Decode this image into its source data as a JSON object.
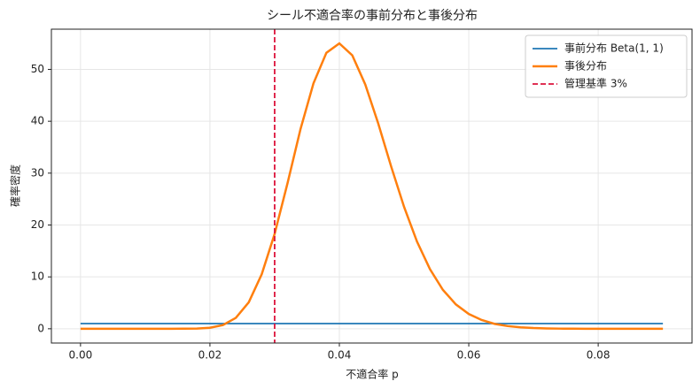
{
  "chart_data": {
    "type": "line",
    "title": "シール不適合率の事前分布と事後分布",
    "x_label": "不適合率 p",
    "y_label": "確率密度",
    "x": [
      0,
      0.002,
      0.004,
      0.006,
      0.008,
      0.01,
      0.012,
      0.014,
      0.016,
      0.018,
      0.02,
      0.022,
      0.024,
      0.026,
      0.028,
      0.03,
      0.032,
      0.034,
      0.036,
      0.038,
      0.04,
      0.042,
      0.044,
      0.046,
      0.048,
      0.05,
      0.052,
      0.054,
      0.056,
      0.058,
      0.06,
      0.062,
      0.064,
      0.066,
      0.068,
      0.07,
      0.072,
      0.074,
      0.076,
      0.078,
      0.08,
      0.082,
      0.084,
      0.086,
      0.088,
      0.09
    ],
    "series": [
      {
        "name": "事前分布 Beta(1, 1)",
        "color": "#1f77b4",
        "width": 1.8,
        "values": [
          1,
          1,
          1,
          1,
          1,
          1,
          1,
          1,
          1,
          1,
          1,
          1,
          1,
          1,
          1,
          1,
          1,
          1,
          1,
          1,
          1,
          1,
          1,
          1,
          1,
          1,
          1,
          1,
          1,
          1,
          1,
          1,
          1,
          1,
          1,
          1,
          1,
          1,
          1,
          1,
          1,
          1,
          1,
          1,
          1,
          1
        ]
      },
      {
        "name": "事後分布",
        "color": "#ff7f0e",
        "width": 2.5,
        "values": [
          0,
          0,
          0,
          0,
          0,
          0,
          0,
          0,
          0.01,
          0.04,
          0.19,
          0.71,
          2.1,
          5.1,
          10.5,
          18.3,
          28.1,
          38.5,
          47.3,
          53.2,
          55,
          52.7,
          47.1,
          39.6,
          31.3,
          23.5,
          16.8,
          11.5,
          7.5,
          4.7,
          2.85,
          1.68,
          0.94,
          0.52,
          0.27,
          0.14,
          0.07,
          0.03,
          0.01,
          0,
          0,
          0,
          0,
          0,
          0,
          0
        ]
      }
    ],
    "reference_line": {
      "name": "管理基準 3%",
      "x": 0.03,
      "color": "#dc143c",
      "dashed": true
    },
    "xlim": [
      -0.0045,
      0.0945
    ],
    "ylim": [
      -2.75,
      57.75
    ],
    "xticks": [
      {
        "value": 0,
        "label": "0.00"
      },
      {
        "value": 0.02,
        "label": "0.02"
      },
      {
        "value": 0.04,
        "label": "0.04"
      },
      {
        "value": 0.06,
        "label": "0.06"
      },
      {
        "value": 0.08,
        "label": "0.08"
      }
    ],
    "yticks": [
      0,
      10,
      20,
      30,
      40,
      50
    ],
    "grid": true,
    "legend_position": "upper-right"
  }
}
